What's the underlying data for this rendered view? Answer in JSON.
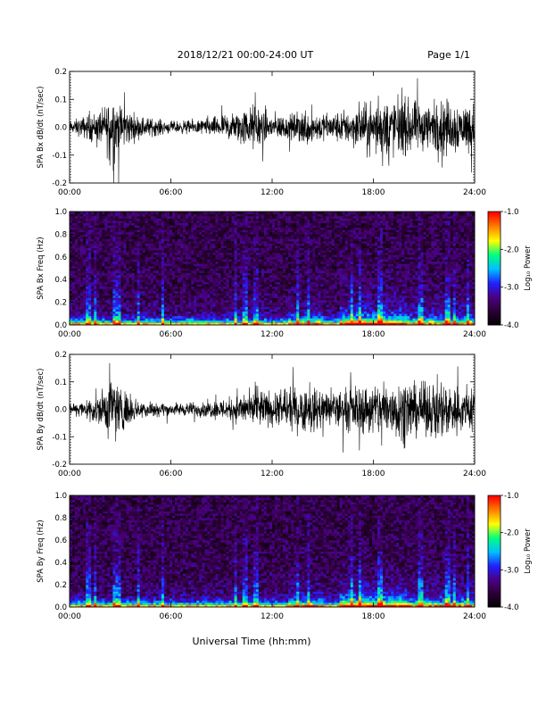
{
  "header": {
    "date_range": "2018/12/21   00:00-24:00 UT",
    "page": "Page 1/1"
  },
  "footer": {
    "xlabel": "Universal Time (hh:mm)"
  },
  "colors": {
    "trace": "#000000",
    "colormap": [
      "#000000",
      "#2a0033",
      "#4b0082",
      "#2020ff",
      "#00bfff",
      "#00ff80",
      "#ffff00",
      "#ff8000",
      "#ff0000"
    ]
  },
  "chart_data": [
    {
      "type": "line",
      "title": "",
      "ylabel": "SPA Bx dB/dt (nT/sec)",
      "xlabel": "",
      "x_ticks": [
        "00:00",
        "06:00",
        "12:00",
        "18:00",
        "24:00"
      ],
      "y_ticks": [
        "0.2",
        "0.1",
        "0.0",
        "-0.1",
        "-0.2"
      ],
      "xlim_hours": [
        0,
        24
      ],
      "ylim": [
        -0.2,
        0.2
      ],
      "series": [
        {
          "values_note_free": true,
          "activity_hours": [
            0,
            1,
            2,
            2.5,
            3,
            4,
            6,
            8,
            10,
            11,
            12,
            13,
            14,
            15,
            16,
            17,
            18,
            19,
            20,
            21,
            22,
            23,
            24
          ],
          "amplitude": [
            0.03,
            0.06,
            0.09,
            0.2,
            0.12,
            0.06,
            0.03,
            0.04,
            0.08,
            0.12,
            0.07,
            0.06,
            0.1,
            0.07,
            0.08,
            0.1,
            0.13,
            0.15,
            0.14,
            0.12,
            0.15,
            0.13,
            0.12
          ]
        }
      ]
    },
    {
      "type": "heatmap",
      "title": "",
      "ylabel": "SPA Bx Freq (Hz)",
      "x_ticks": [
        "00:00",
        "06:00",
        "12:00",
        "18:00",
        "24:00"
      ],
      "y_ticks": [
        "1.0",
        "0.8",
        "0.6",
        "0.4",
        "0.2",
        "0.0"
      ],
      "xlim_hours": [
        0,
        24
      ],
      "ylim": [
        0.0,
        1.0
      ],
      "colorbar": {
        "label": "Log₁₀ Power",
        "ticks": [
          "-1.0",
          "-2.0",
          "-3.0",
          "-4.0"
        ],
        "range": [
          -4.0,
          -1.0
        ]
      }
    },
    {
      "type": "line",
      "title": "",
      "ylabel": "SPA By dB/dt (nT/sec)",
      "xlabel": "",
      "x_ticks": [
        "00:00",
        "06:00",
        "12:00",
        "18:00",
        "24:00"
      ],
      "y_ticks": [
        "0.2",
        "0.1",
        "0.0",
        "-0.1",
        "-0.2"
      ],
      "xlim_hours": [
        0,
        24
      ],
      "ylim": [
        -0.2,
        0.2
      ],
      "series": [
        {
          "activity_hours": [
            0,
            1,
            2,
            2.5,
            3,
            4,
            6,
            8,
            10,
            11,
            12,
            13,
            14,
            15,
            16,
            17,
            18,
            19,
            20,
            21,
            22,
            23,
            24
          ],
          "amplitude": [
            0.03,
            0.05,
            0.1,
            0.2,
            0.12,
            0.05,
            0.03,
            0.04,
            0.07,
            0.1,
            0.09,
            0.1,
            0.12,
            0.1,
            0.1,
            0.12,
            0.14,
            0.16,
            0.15,
            0.13,
            0.15,
            0.13,
            0.12
          ]
        }
      ]
    },
    {
      "type": "heatmap",
      "title": "",
      "ylabel": "SPA By Freq (Hz)",
      "x_ticks": [
        "00:00",
        "06:00",
        "12:00",
        "18:00",
        "24:00"
      ],
      "y_ticks": [
        "1.0",
        "0.8",
        "0.6",
        "0.4",
        "0.2",
        "0.0"
      ],
      "xlim_hours": [
        0,
        24
      ],
      "ylim": [
        0.0,
        1.0
      ],
      "colorbar": {
        "label": "Log₁₀ Power",
        "ticks": [
          "-1.0",
          "-2.0",
          "-3.0",
          "-4.0"
        ],
        "range": [
          -4.0,
          -1.0
        ]
      }
    }
  ]
}
